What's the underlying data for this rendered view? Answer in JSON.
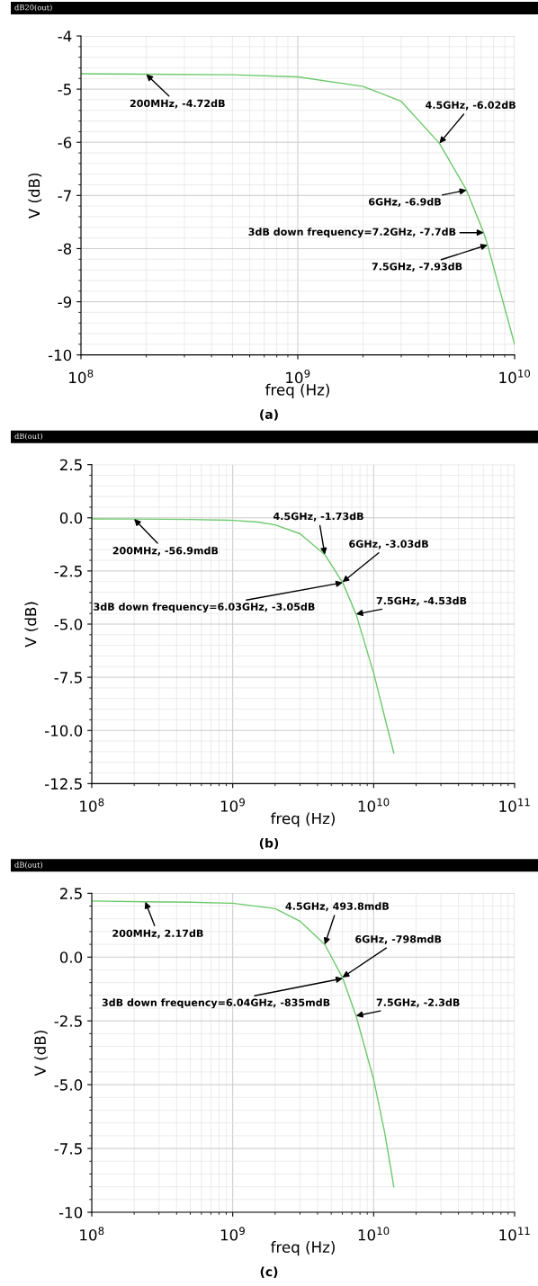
{
  "chart_data": [
    {
      "type": "line",
      "title": "dB20(out)",
      "xlabel": "freq (Hz)",
      "ylabel": "V (dB)",
      "log": "x",
      "grid": true,
      "xlim": [
        100000000,
        10000000000
      ],
      "xticks": [
        {
          "value": 100000000,
          "label": "10$^{8}$"
        },
        {
          "value": 1000000000,
          "label": "10$^{9}$"
        },
        {
          "value": 10000000000,
          "label": "10$^{10}$"
        }
      ],
      "ylim": [
        -10,
        -4
      ],
      "yticks": [
        -10,
        -9,
        -8,
        -7,
        -6,
        -5,
        -4
      ],
      "x": [
        100000000,
        200000000,
        500000000,
        1000000000,
        2000000000,
        3000000000,
        4500000000,
        6000000000,
        7200000000,
        7500000000,
        10000000000
      ],
      "series": [
        {
          "color": "#6cc96c",
          "values": [
            -4.71,
            -4.72,
            -4.73,
            -4.77,
            -4.95,
            -5.23,
            -6.02,
            -6.9,
            -7.7,
            -7.93,
            -9.8
          ]
        }
      ],
      "annotations": [
        {
          "text": "200MHz, -4.72dB",
          "x": 200000000,
          "y": -4.72
        },
        {
          "text": "4.5GHz, -6.02dB",
          "x": 4500000000,
          "y": -6.02
        },
        {
          "text": "6GHz, -6.9dB",
          "x": 6000000000,
          "y": -6.9
        },
        {
          "text": "3dB down frequency=7.2GHz, -7.7dB",
          "x": 7200000000,
          "y": -7.7
        },
        {
          "text": "7.5GHz, -7.93dB",
          "x": 7500000000,
          "y": -7.93
        },
        "(a)"
      ]
    },
    {
      "type": "line",
      "title": "dB(out)",
      "xlabel": "freq (Hz)",
      "ylabel": "V (dB)",
      "log": "x",
      "grid": true,
      "xlim": [
        100000000,
        100000000000
      ],
      "xticks": [
        {
          "value": 100000000,
          "label": "10$^{8}$"
        },
        {
          "value": 1000000000,
          "label": "10$^{9}$"
        },
        {
          "value": 10000000000,
          "label": "10$^{10}$"
        },
        {
          "value": 100000000000,
          "label": "10$^{11}$"
        }
      ],
      "ylim": [
        -12.5,
        2.5
      ],
      "yticks": [
        {
          "value": -12.5,
          "label": "-12.5"
        },
        {
          "value": -10,
          "label": "-10.0"
        },
        {
          "value": -7.5,
          "label": "-7.5"
        },
        {
          "value": -5,
          "label": "-5.0"
        },
        {
          "value": -2.5,
          "label": "-2.5"
        },
        {
          "value": 0,
          "label": "0.0"
        },
        {
          "value": 2.5,
          "label": "2.5"
        }
      ],
      "x": [
        100000000,
        200000000,
        500000000,
        1000000000,
        1500000000,
        2000000000,
        3000000000,
        4500000000,
        6000000000,
        6030000000,
        7500000000,
        10000000000,
        12000000000,
        13900000000
      ],
      "series": [
        {
          "color": "#6cc96c",
          "values": [
            -0.05,
            -0.057,
            -0.08,
            -0.12,
            -0.2,
            -0.33,
            -0.75,
            -1.73,
            -3.03,
            -3.05,
            -4.53,
            -7.3,
            -9.4,
            -11.06
          ]
        }
      ],
      "annotations": [
        {
          "text": "200MHz, -56.9mdB",
          "x": 200000000,
          "y": -0.057
        },
        {
          "text": "4.5GHz, -1.73dB",
          "x": 4500000000,
          "y": -1.73
        },
        {
          "text": "6GHz, -3.03dB",
          "x": 6000000000,
          "y": -3.03
        },
        {
          "text": "3dB down frequency=6.03GHz, -3.05dB",
          "x": 6030000000,
          "y": -3.05
        },
        {
          "text": "7.5GHz, -4.53dB",
          "x": 7500000000,
          "y": -4.53
        },
        "(b)"
      ]
    },
    {
      "type": "line",
      "title": "dB(out)",
      "xlabel": "freq (Hz)",
      "ylabel": "V (dB)",
      "log": "x",
      "grid": true,
      "xlim": [
        100000000,
        100000000000
      ],
      "xticks": [
        {
          "value": 100000000,
          "label": "10$^{8}$"
        },
        {
          "value": 1000000000,
          "label": "10$^{9}$"
        },
        {
          "value": 10000000000,
          "label": "10$^{10}$"
        },
        {
          "value": 100000000000,
          "label": "10$^{11}$"
        }
      ],
      "ylim": [
        -10,
        2.5
      ],
      "yticks": [
        {
          "value": -10,
          "label": "-10"
        },
        {
          "value": -7.5,
          "label": "-7.5"
        },
        {
          "value": -5,
          "label": "-5.0"
        },
        {
          "value": -2.5,
          "label": "-2.5"
        },
        {
          "value": 0,
          "label": "0.0"
        },
        {
          "value": 2.5,
          "label": "2.5"
        }
      ],
      "x": [
        100000000,
        240000000,
        500000000,
        1000000000,
        2000000000,
        3000000000,
        4500000000,
        6000000000,
        6040000000,
        7500000000,
        10000000000,
        12000000000,
        13900000000
      ],
      "series": [
        {
          "color": "#6cc96c",
          "values": [
            2.2,
            2.17,
            2.15,
            2.11,
            1.9,
            1.41,
            0.4938,
            -0.798,
            -0.835,
            -2.3,
            -4.8,
            -6.9,
            -9.0
          ]
        }
      ],
      "annotations": [
        {
          "text": "200MHz, 2.17dB",
          "x": 240000000,
          "y": 2.17
        },
        {
          "text": "4.5GHz, 493.8mdB",
          "x": 4500000000,
          "y": 0.4938
        },
        {
          "text": "6GHz, -798mdB",
          "x": 6000000000,
          "y": -0.798
        },
        {
          "text": "3dB down frequency=6.04GHz, -835mdB",
          "x": 6040000000,
          "y": -0.835
        },
        {
          "text": "7.5GHz, -2.3dB",
          "x": 7500000000,
          "y": -2.3
        },
        "(c)"
      ]
    }
  ]
}
